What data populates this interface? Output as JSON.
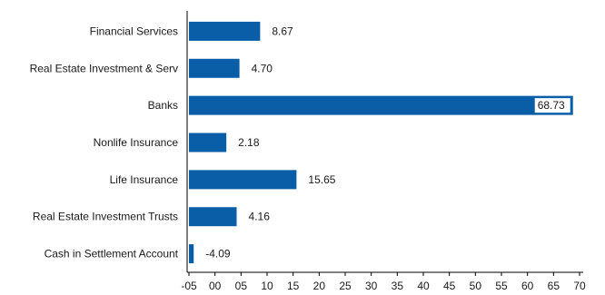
{
  "chart_data": {
    "type": "bar",
    "orientation": "horizontal",
    "categories": [
      "Financial Services",
      "Real Estate Investment & Serv",
      "Banks",
      "Nonlife Insurance",
      "Life Insurance",
      "Real Estate Investment Trusts",
      "Cash in Settlement Account"
    ],
    "values": [
      8.67,
      4.7,
      68.73,
      2.18,
      15.65,
      4.16,
      -4.09
    ],
    "value_labels": [
      "8.67",
      "4.70",
      "68.73",
      "2.18",
      "15.65",
      "4.16",
      "-4.09"
    ],
    "xlim": [
      -5,
      70
    ],
    "x_ticks": [
      -5,
      0,
      5,
      10,
      15,
      20,
      25,
      30,
      35,
      40,
      45,
      50,
      55,
      60,
      65,
      70
    ],
    "x_tick_labels": [
      "-05",
      "00",
      "05",
      "10",
      "15",
      "20",
      "25",
      "30",
      "35",
      "40",
      "45",
      "50",
      "55",
      "60",
      "65",
      "70"
    ],
    "bar_color": "#0a5ea8",
    "label_background": "#ffffff",
    "grid": false,
    "legend": "none"
  }
}
